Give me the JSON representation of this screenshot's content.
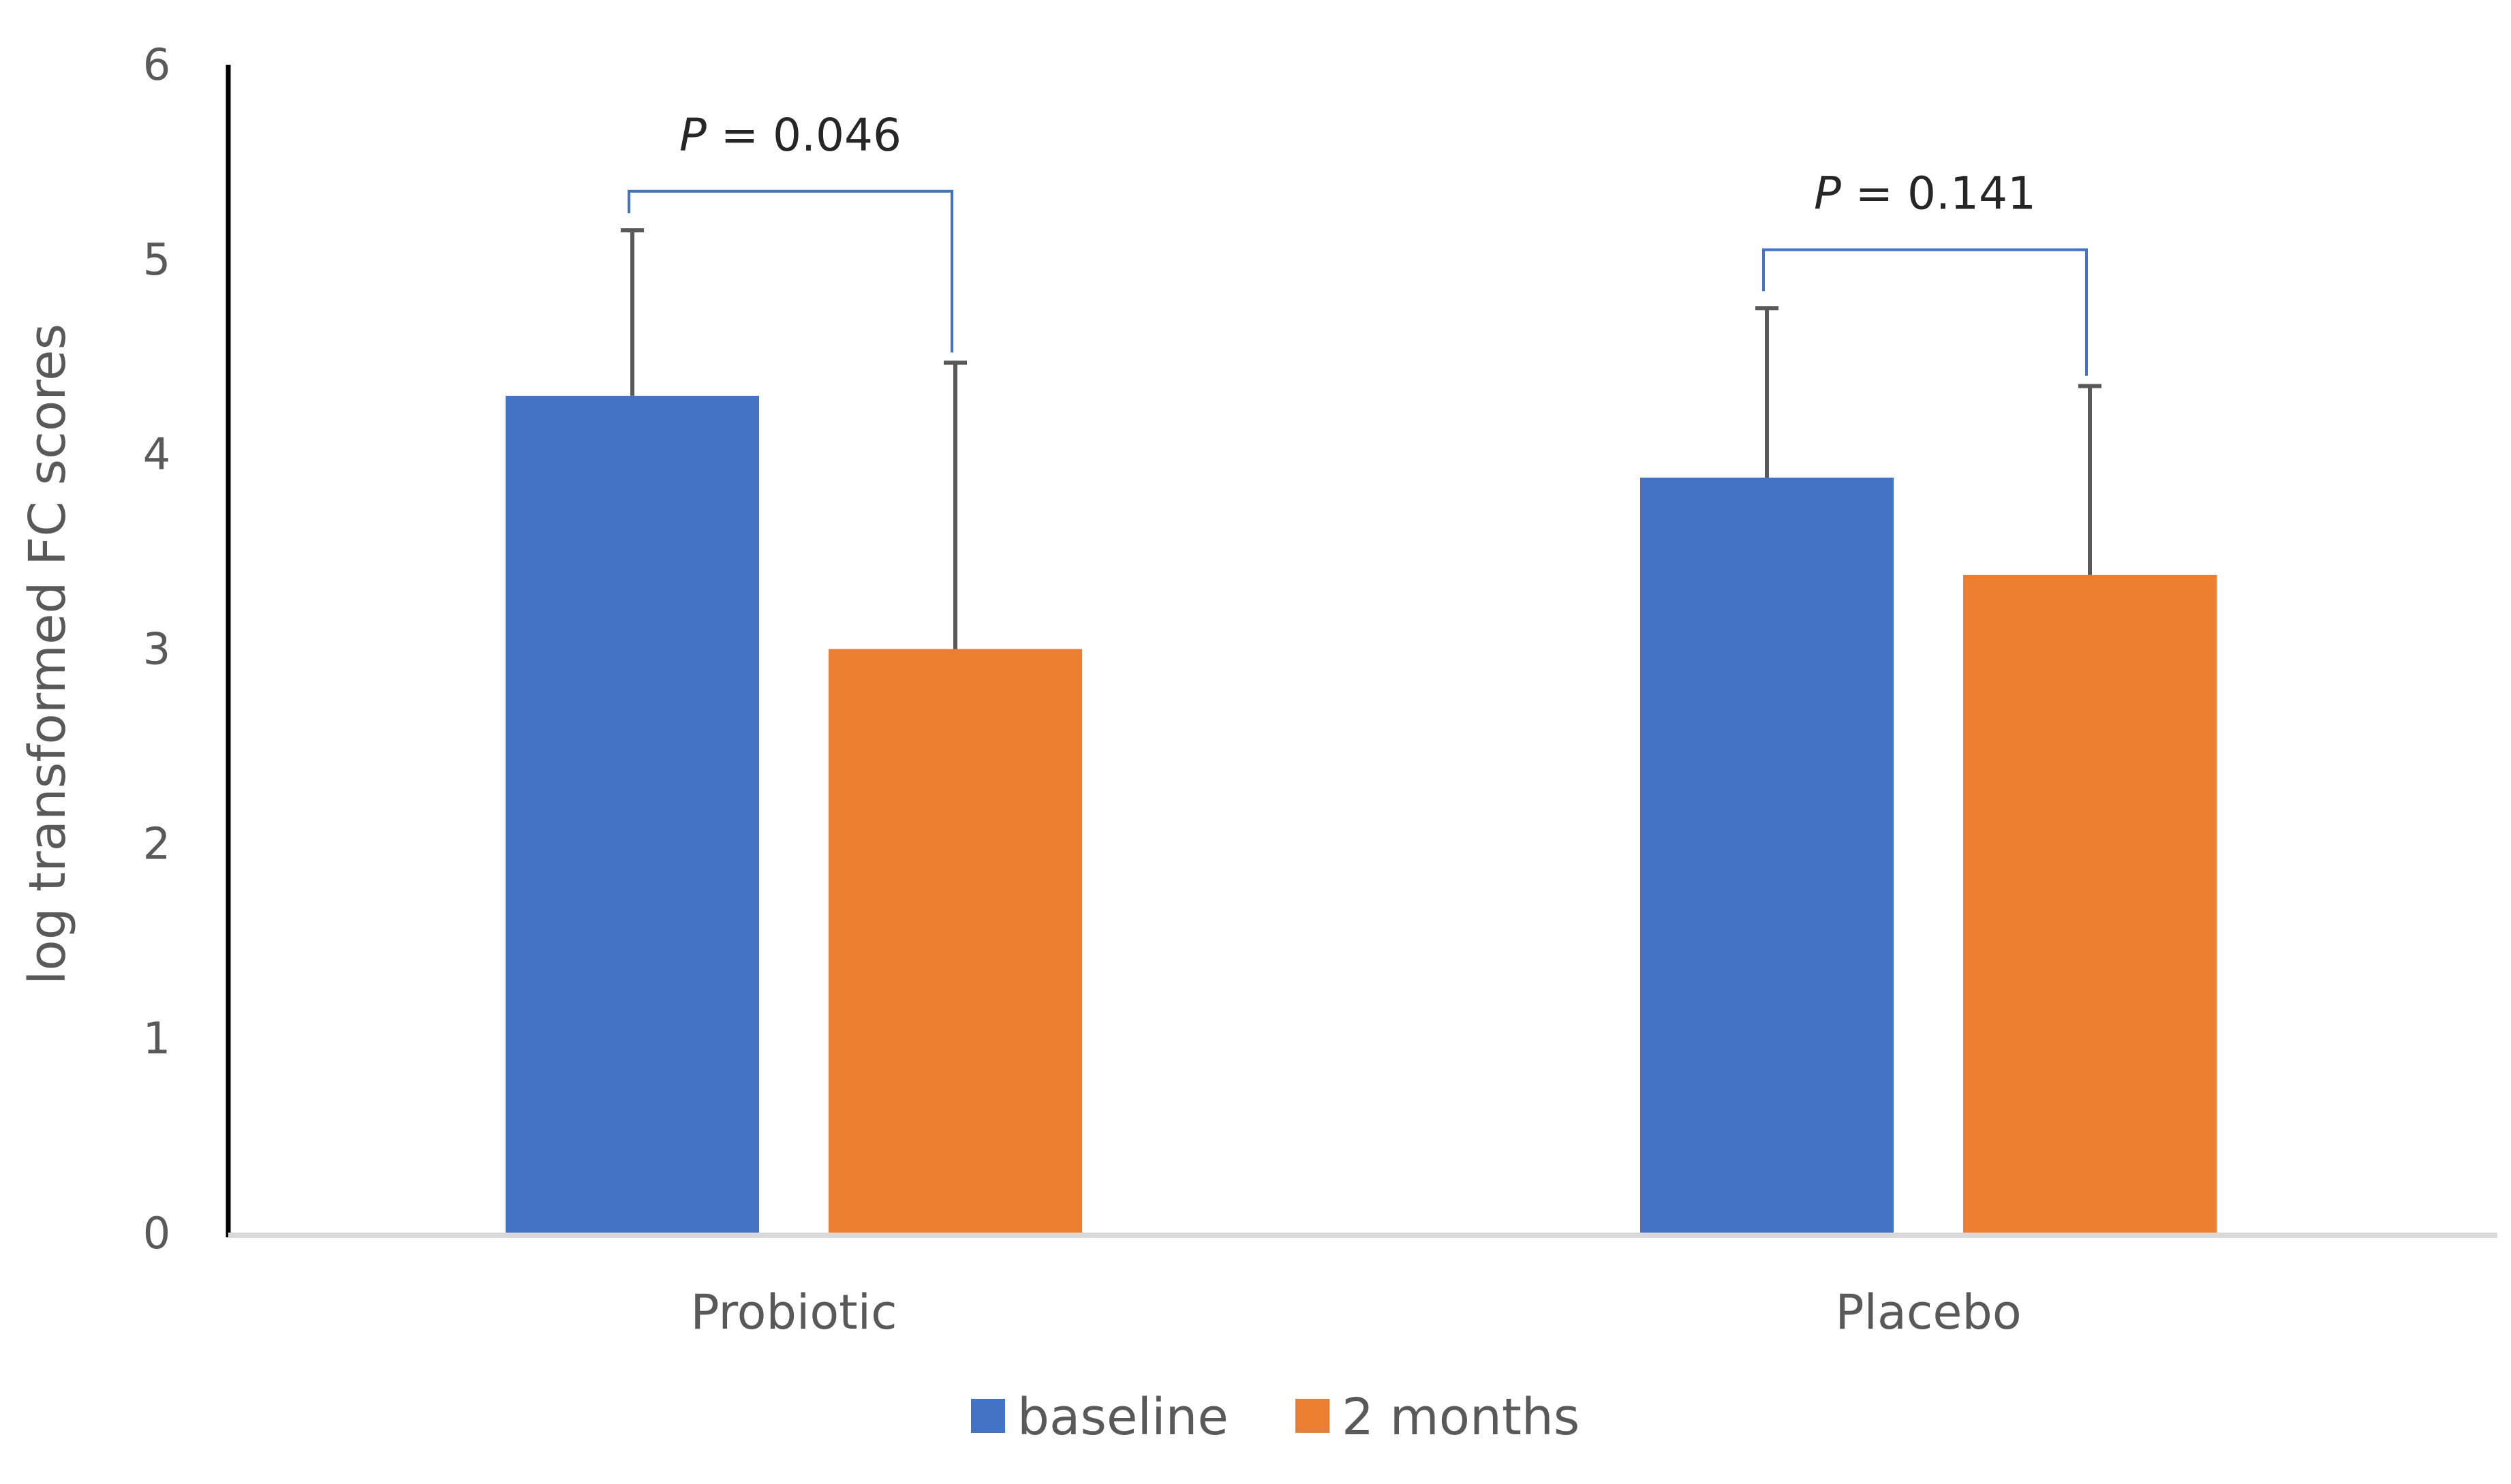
{
  "chart_data": {
    "type": "bar",
    "categories": [
      "Probiotic",
      "Placebo"
    ],
    "series": [
      {
        "name": "baseline",
        "color": "#4472C4",
        "values": [
          4.3,
          3.88
        ],
        "error_plus": [
          0.85,
          0.87
        ]
      },
      {
        "name": "2 months",
        "color": "#ED7D31",
        "values": [
          3.0,
          3.38
        ],
        "error_plus": [
          1.47,
          0.97
        ]
      }
    ],
    "ylabel": "log transformed FC scores",
    "xlabel": "",
    "ylim": [
      0,
      6
    ],
    "yticks": [
      0,
      1,
      2,
      3,
      4,
      5,
      6
    ],
    "grid": false,
    "legend_position": "bottom-center",
    "annotations": [
      {
        "category": "Probiotic",
        "prefix": "P",
        "text": " = 0.046",
        "bracket_y": 5.35
      },
      {
        "category": "Placebo",
        "prefix": "P",
        "text": " = 0.141",
        "bracket_y": 5.05
      }
    ],
    "colors": {
      "axis": "#000000",
      "baseline": "#D9D9D9",
      "error_bar": "#595959",
      "bracket": "#4472C4"
    }
  }
}
